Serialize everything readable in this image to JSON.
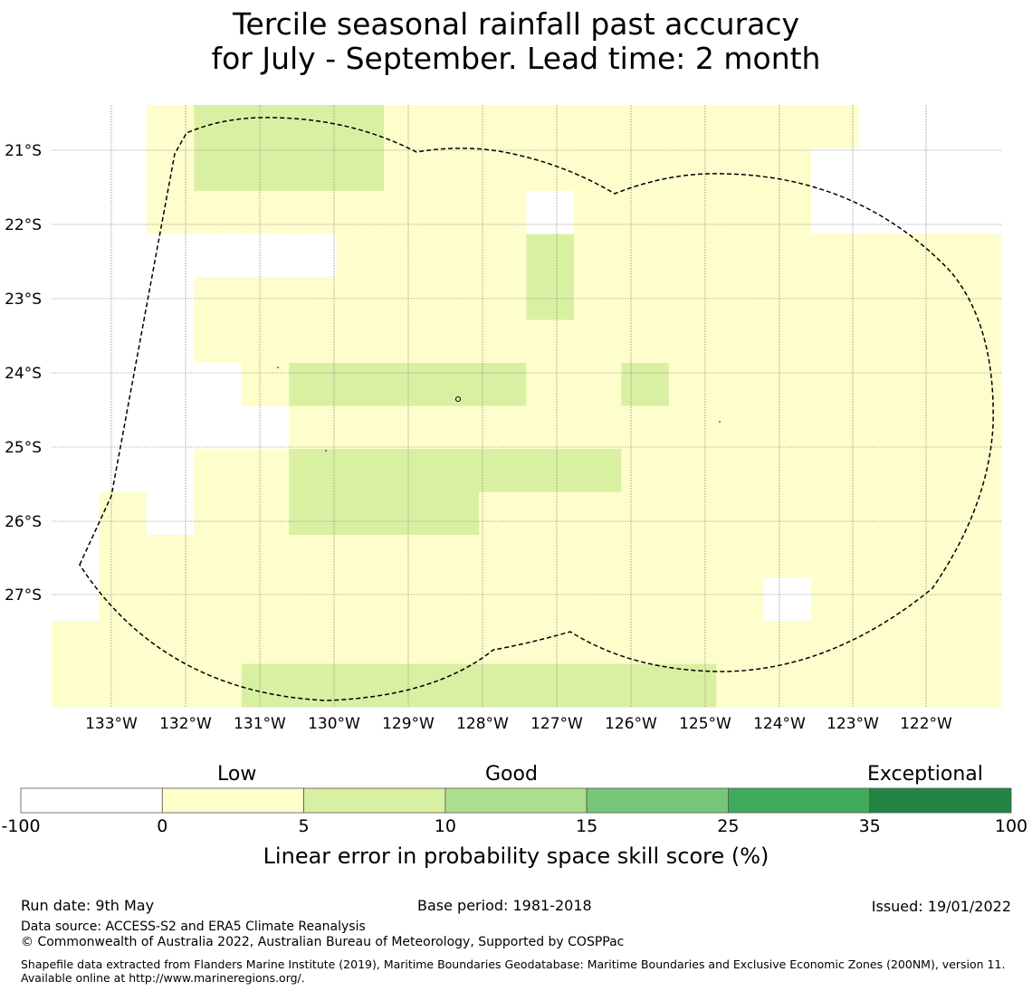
{
  "title_line1": "Tercile seasonal rainfall past accuracy",
  "title_line2": "for July - September. Lead time: 2 month",
  "map": {
    "lat_labels": [
      "21°S",
      "22°S",
      "23°S",
      "24°S",
      "25°S",
      "26°S",
      "27°S"
    ],
    "lon_labels": [
      "133°W",
      "132°W",
      "131°W",
      "130°W",
      "129°W",
      "128°W",
      "127°W",
      "126°W",
      "125°W",
      "124°W",
      "123°W",
      "122°W"
    ],
    "colors": {
      "0": "#ffffff",
      "1": "#fefecc",
      "2": "#d9f0a3",
      "3": "#addd8e",
      "4": "#78c679",
      "5": "#41ab5d",
      "6": "#238443"
    },
    "grid_cells_rows": [
      "00122221111111111000",
      "00122221111111110000",
      "00111111110111110000",
      "00000011112111111111",
      "00011111112111111111",
      "00011111111111111111",
      "00001222221121111111",
      "00000111111111111111",
      "00011222222211111111",
      "01011222211111111111",
      "01111111111111111111",
      "01111111111111101111",
      "11111111111111111111",
      "11112222222222111111"
    ]
  },
  "colorbar": {
    "category_labels": [
      "Low",
      "Good",
      "Exceptional"
    ],
    "ticks": [
      "-100",
      "0",
      "5",
      "10",
      "15",
      "25",
      "35",
      "100"
    ],
    "colors": [
      "#ffffff",
      "#ffffcc",
      "#d9f0a3",
      "#addd8e",
      "#78c679",
      "#41ab5d",
      "#238443"
    ],
    "title": "Linear error in probability space skill score (%)"
  },
  "footer": {
    "run_date": "Run date: 9th May",
    "base_period": "Base period: 1981-2018",
    "issued": "Issued: 19/01/2022",
    "data_source": "Data source: ACCESS-S2 and ERA5 Climate Reanalysis",
    "copyright": "© Commonwealth of Australia 2022, Australian Bureau of Meteorology, Supported by COSPPac",
    "shapefile": "Shapefile data extracted from Flanders Marine Institute (2019), Maritime Boundaries Geodatabase: Maritime Boundaries and Exclusive Economic Zones (200NM), version 11. Available online at http://www.marineregions.org/."
  }
}
